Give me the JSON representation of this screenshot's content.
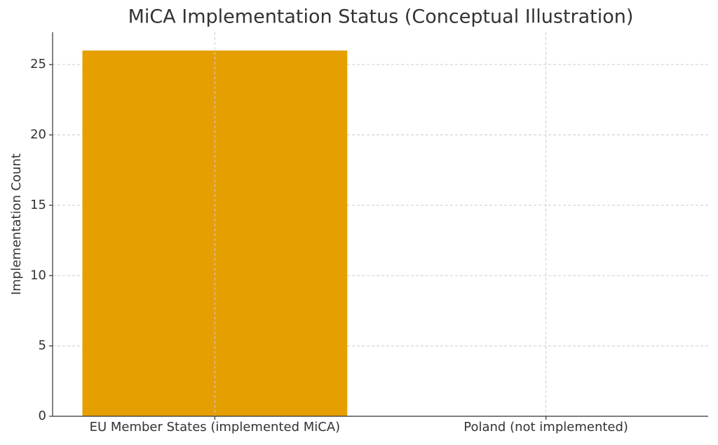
{
  "chart_data": {
    "type": "bar",
    "title": "MiCA Implementation Status (Conceptual Illustration)",
    "y_label": "Implementation Count",
    "categories": [
      "EU Member States (implemented MiCA)",
      "Poland (not implemented)"
    ],
    "values": [
      26,
      0
    ],
    "color": "#e69f00",
    "ylim": [
      0,
      27.3
    ],
    "yticks": [
      0,
      5,
      10,
      15,
      20,
      25
    ],
    "grid": true
  }
}
